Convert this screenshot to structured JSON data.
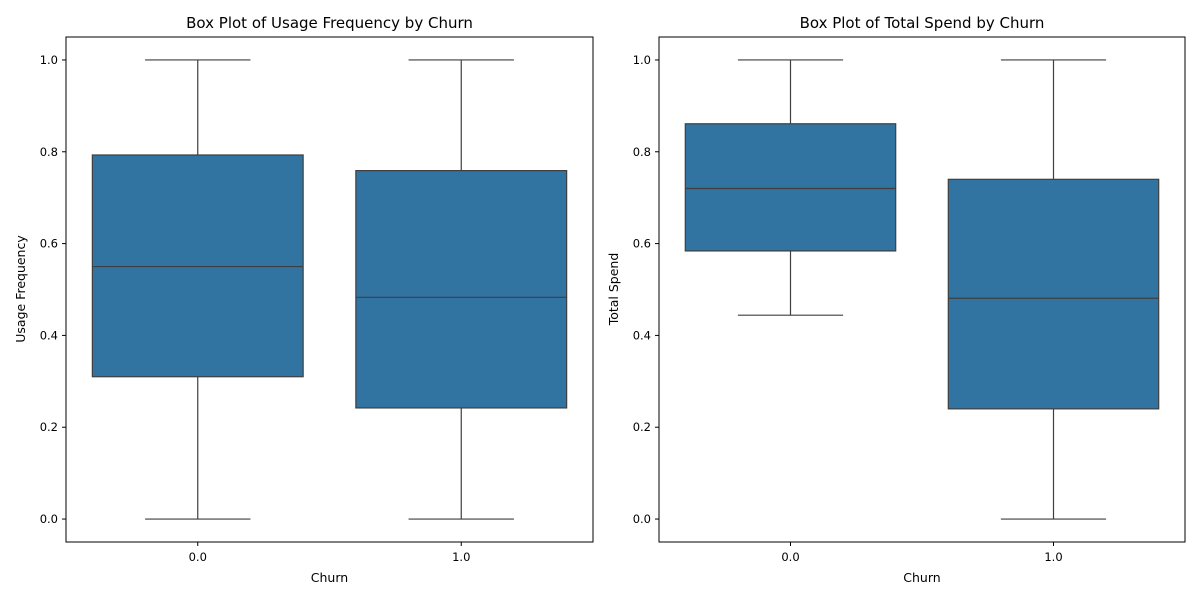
{
  "chart_data": [
    {
      "type": "box",
      "title": "Box Plot of Usage Frequency by Churn",
      "xlabel": "Churn",
      "ylabel": "Usage Frequency",
      "categories": [
        "0.0",
        "1.0"
      ],
      "ylim": [
        -0.05,
        1.05
      ],
      "yticks": [
        "0.0",
        "0.2",
        "0.4",
        "0.6",
        "0.8",
        "1.0"
      ],
      "grid": false,
      "color": "#3274a1",
      "boxes": [
        {
          "category": "0.0",
          "whisker_low": 0.0,
          "q1": 0.31,
          "median": 0.55,
          "q3": 0.793,
          "whisker_high": 1.0
        },
        {
          "category": "1.0",
          "whisker_low": 0.0,
          "q1": 0.242,
          "median": 0.483,
          "q3": 0.759,
          "whisker_high": 1.0
        }
      ]
    },
    {
      "type": "box",
      "title": "Box Plot of Total Spend by Churn",
      "xlabel": "Churn",
      "ylabel": "Total Spend",
      "categories": [
        "0.0",
        "1.0"
      ],
      "ylim": [
        -0.05,
        1.05
      ],
      "yticks": [
        "0.0",
        "0.2",
        "0.4",
        "0.6",
        "0.8",
        "1.0"
      ],
      "grid": false,
      "color": "#3274a1",
      "boxes": [
        {
          "category": "0.0",
          "whisker_low": 0.444,
          "q1": 0.584,
          "median": 0.72,
          "q3": 0.861,
          "whisker_high": 1.0
        },
        {
          "category": "1.0",
          "whisker_low": 0.0,
          "q1": 0.24,
          "median": 0.481,
          "q3": 0.74,
          "whisker_high": 1.0
        }
      ]
    }
  ]
}
